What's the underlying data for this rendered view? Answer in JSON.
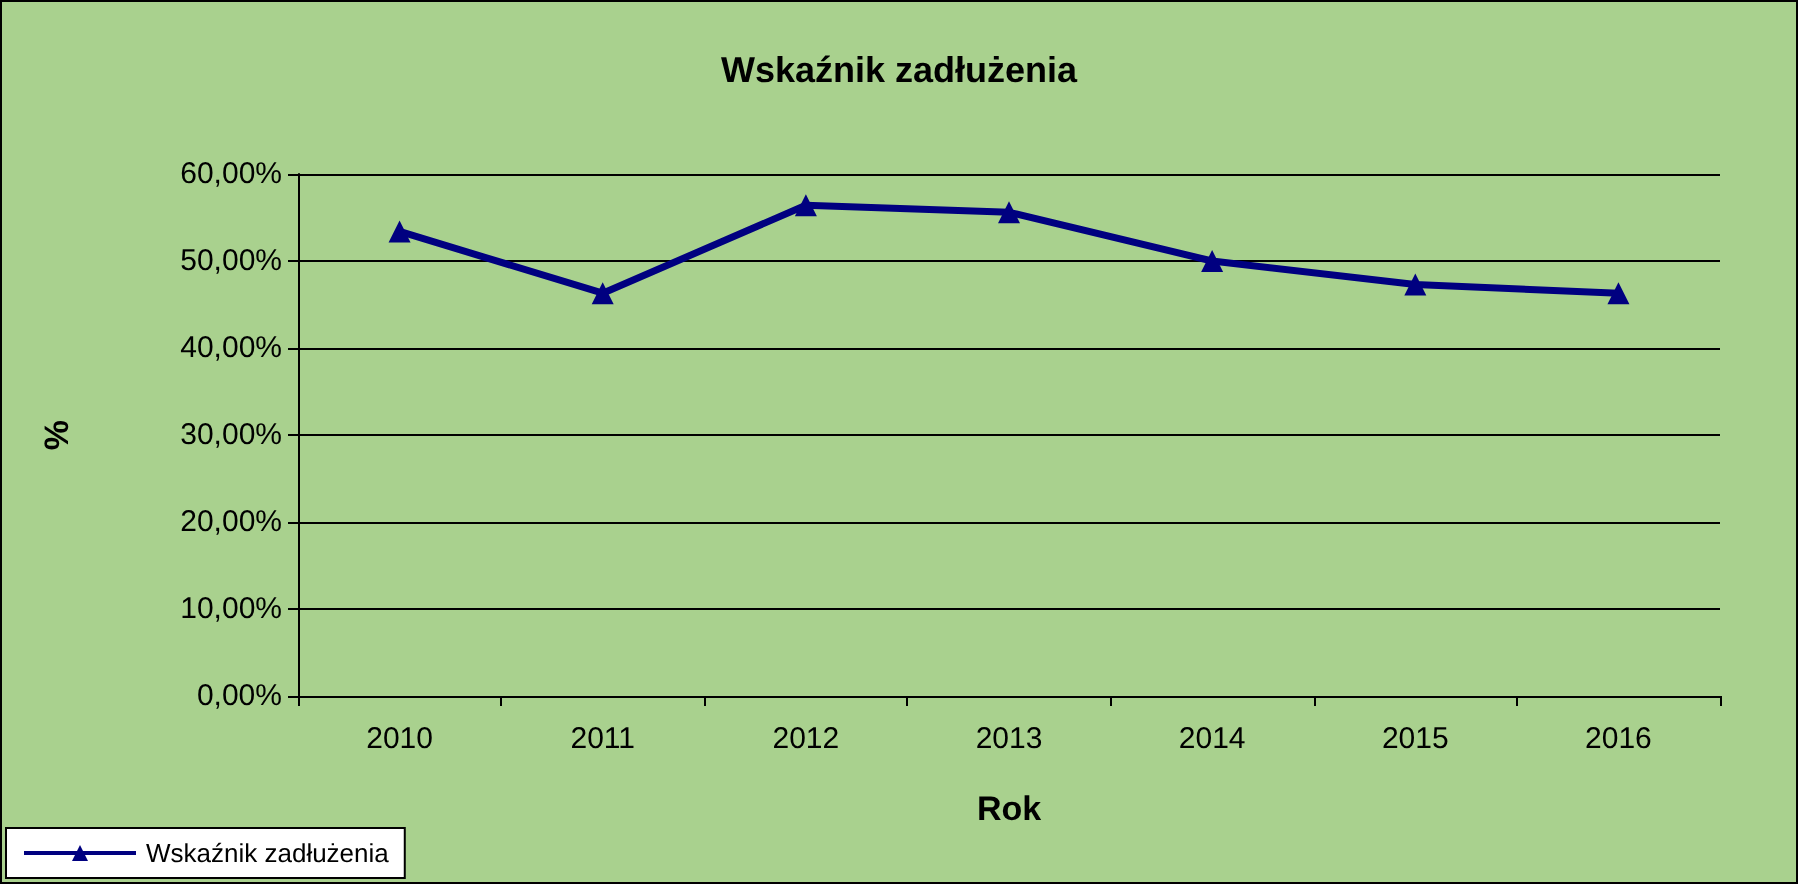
{
  "chart_data": {
    "type": "line",
    "title": "Wskaźnik zadłużenia",
    "xlabel": "Rok",
    "ylabel": "%",
    "categories": [
      "2010",
      "2011",
      "2012",
      "2013",
      "2014",
      "2015",
      "2016"
    ],
    "series": [
      {
        "name": "Wskaźnik zadłużenia",
        "color": "#000080",
        "values": [
          53.4,
          46.3,
          56.4,
          55.6,
          50.0,
          47.3,
          46.3
        ]
      }
    ],
    "ylim": [
      0,
      60
    ],
    "yticks": [
      {
        "value": 0,
        "label": "0,00%"
      },
      {
        "value": 10,
        "label": "10,00%"
      },
      {
        "value": 20,
        "label": "20,00%"
      },
      {
        "value": 30,
        "label": "30,00%"
      },
      {
        "value": 40,
        "label": "40,00%"
      },
      {
        "value": 50,
        "label": "50,00%"
      },
      {
        "value": 60,
        "label": "60,00%"
      }
    ],
    "grid": "y",
    "legend": "bottom left",
    "marker": "triangle",
    "line_style": "solid"
  }
}
